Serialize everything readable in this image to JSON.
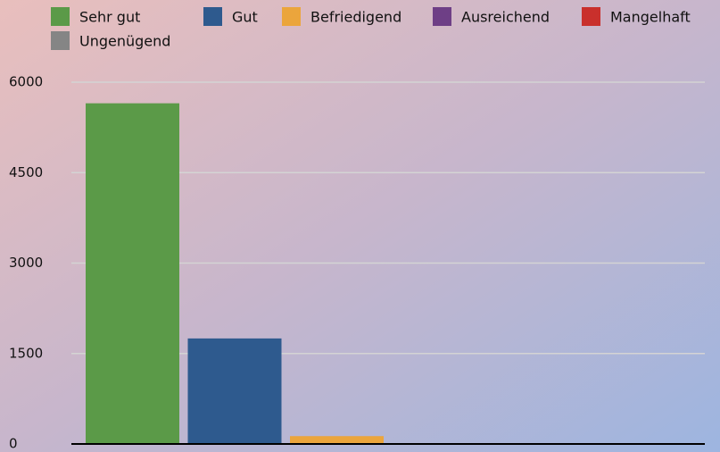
{
  "chart_data": {
    "type": "bar",
    "series": [
      {
        "name": "Sehr gut",
        "color": "#5b9a48",
        "values": [
          5650
        ]
      },
      {
        "name": "Gut",
        "color": "#2e5a8e",
        "values": [
          1750
        ]
      },
      {
        "name": "Befriedigend",
        "color": "#eba53c",
        "values": [
          130
        ]
      },
      {
        "name": "Ausreichend",
        "color": "#6e3f86",
        "values": [
          0
        ]
      },
      {
        "name": "Mangelhaft",
        "color": "#c9302c",
        "values": [
          0
        ]
      },
      {
        "name": "Ungenügend",
        "color": "#858585",
        "values": [
          0
        ]
      }
    ],
    "ylim": [
      0,
      6000
    ],
    "yticks": [
      0,
      1500,
      3000,
      4500,
      6000
    ],
    "grid": true
  }
}
